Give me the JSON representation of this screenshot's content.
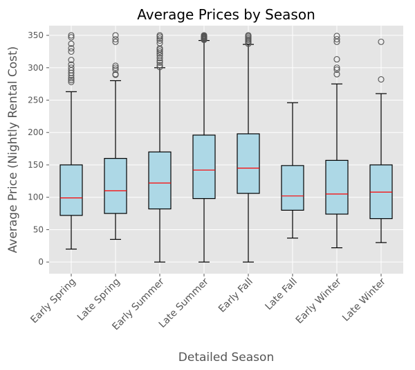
{
  "chart_data": {
    "type": "box",
    "title": "Average Prices by Season",
    "xlabel": "Detailed Season",
    "ylabel": "Average Price (Nightly Rental Cost)",
    "ylim": [
      -18,
      365
    ],
    "yticks": [
      0,
      50,
      100,
      150,
      200,
      250,
      300,
      350
    ],
    "grid": true,
    "colors": {
      "box_fill": "#add8e6",
      "median": "#ff0000",
      "background": "#e5e5e5",
      "grid": "#ffffff",
      "outlier": "#555555"
    },
    "categories": [
      "Early Spring",
      "Late Spring",
      "Early Summer",
      "Late Summer",
      "Early Fall",
      "Late Fall",
      "Early Winter",
      "Late Winter"
    ],
    "boxes": [
      {
        "label": "Early Spring",
        "whisker_low": 20,
        "q1": 72,
        "median": 99,
        "q3": 150,
        "whisker_high": 263,
        "outliers": [
          278,
          281,
          284,
          288,
          292,
          296,
          300,
          305,
          312,
          325,
          330,
          337,
          347,
          350
        ]
      },
      {
        "label": "Late Spring",
        "whisker_low": 35,
        "q1": 75,
        "median": 110,
        "q3": 160,
        "whisker_high": 280,
        "outliers": [
          289,
          290,
          297,
          300,
          303,
          340,
          344,
          350
        ]
      },
      {
        "label": "Early Summer",
        "whisker_low": 0,
        "q1": 82,
        "median": 122,
        "q3": 170,
        "whisker_high": 300,
        "outliers": [
          301,
          304,
          308,
          311,
          315,
          319,
          322,
          325,
          328,
          330,
          338,
          342,
          345,
          348,
          350
        ]
      },
      {
        "label": "Late Summer",
        "whisker_low": 0,
        "q1": 98,
        "median": 142,
        "q3": 196,
        "whisker_high": 342,
        "outliers": [
          343,
          344,
          345,
          346,
          347,
          348,
          349,
          350
        ]
      },
      {
        "label": "Early Fall",
        "whisker_low": 0,
        "q1": 106,
        "median": 145,
        "q3": 198,
        "whisker_high": 336,
        "outliers": [
          337,
          339,
          341,
          343,
          345,
          347,
          349,
          350
        ]
      },
      {
        "label": "Late Fall",
        "whisker_low": 37,
        "q1": 80,
        "median": 102,
        "q3": 149,
        "whisker_high": 246,
        "outliers": []
      },
      {
        "label": "Early Winter",
        "whisker_low": 22,
        "q1": 74,
        "median": 105,
        "q3": 157,
        "whisker_high": 275,
        "outliers": [
          290,
          297,
          300,
          313,
          340,
          344,
          349
        ]
      },
      {
        "label": "Late Winter",
        "whisker_low": 30,
        "q1": 67,
        "median": 108,
        "q3": 150,
        "whisker_high": 260,
        "outliers": [
          282,
          340
        ]
      }
    ]
  }
}
